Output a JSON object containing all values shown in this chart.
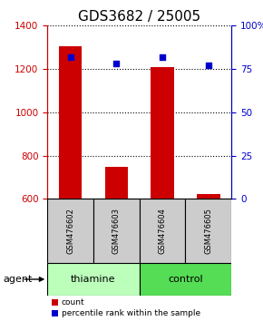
{
  "title": "GDS3682 / 25005",
  "samples": [
    "GSM476602",
    "GSM476603",
    "GSM476604",
    "GSM476605"
  ],
  "counts": [
    1305,
    750,
    1210,
    622
  ],
  "percentiles": [
    82,
    78,
    82,
    77
  ],
  "ylim_left": [
    600,
    1400
  ],
  "ylim_right": [
    0,
    100
  ],
  "yticks_left": [
    600,
    800,
    1000,
    1200,
    1400
  ],
  "yticks_right": [
    0,
    25,
    50,
    75,
    100
  ],
  "bar_color": "#cc0000",
  "dot_color": "#0000cc",
  "groups": [
    {
      "label": "thiamine",
      "samples": [
        0,
        1
      ],
      "color": "#bbffbb"
    },
    {
      "label": "control",
      "samples": [
        2,
        3
      ],
      "color": "#55dd55"
    }
  ],
  "group_bg_color": "#cccccc",
  "agent_label": "agent",
  "legend_count_label": "count",
  "legend_pct_label": "percentile rank within the sample",
  "title_fontsize": 11,
  "axis_label_color_left": "#cc0000",
  "axis_label_color_right": "#0000cc"
}
